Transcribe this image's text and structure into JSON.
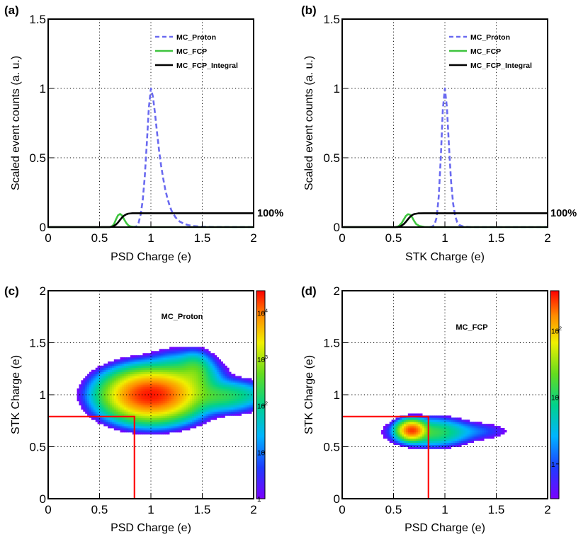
{
  "chart_data": [
    {
      "id": "a",
      "type": "line",
      "panel_label": "(a)",
      "xlabel": "PSD Charge (e)",
      "ylabel": "Scaled event counts (a. u.)",
      "xlim": [
        0,
        2
      ],
      "ylim": [
        0,
        1.5
      ],
      "xticks": [
        "0",
        "0.5",
        "1",
        "1.5",
        "2"
      ],
      "yticks": [
        "0",
        "0.5",
        "1",
        "1.5"
      ],
      "grid": true,
      "legend_position": "top-right",
      "annotation": {
        "text": "100%",
        "x": 2.0,
        "y": 0.1
      },
      "series": [
        {
          "name": "MC_Proton",
          "color": "#6a6af0",
          "dash": true,
          "points": [
            [
              0.82,
              0
            ],
            [
              0.86,
              0.005
            ],
            [
              0.88,
              0.03
            ],
            [
              0.9,
              0.09
            ],
            [
              0.92,
              0.19
            ],
            [
              0.94,
              0.36
            ],
            [
              0.96,
              0.6
            ],
            [
              0.98,
              0.86
            ],
            [
              1.0,
              1.0
            ],
            [
              1.02,
              0.94
            ],
            [
              1.04,
              0.82
            ],
            [
              1.06,
              0.68
            ],
            [
              1.08,
              0.55
            ],
            [
              1.1,
              0.44
            ],
            [
              1.12,
              0.35
            ],
            [
              1.14,
              0.27
            ],
            [
              1.16,
              0.21
            ],
            [
              1.18,
              0.16
            ],
            [
              1.2,
              0.12
            ],
            [
              1.24,
              0.07
            ],
            [
              1.28,
              0.04
            ],
            [
              1.32,
              0.025
            ],
            [
              1.36,
              0.015
            ],
            [
              1.42,
              0.007
            ],
            [
              1.5,
              0.003
            ],
            [
              1.6,
              0.001
            ],
            [
              2.0,
              0
            ]
          ]
        },
        {
          "name": "MC_FCP",
          "color": "#3ec43e",
          "dash": false,
          "points": [
            [
              0,
              0
            ],
            [
              0.6,
              0
            ],
            [
              0.62,
              0.005
            ],
            [
              0.64,
              0.02
            ],
            [
              0.66,
              0.055
            ],
            [
              0.68,
              0.085
            ],
            [
              0.7,
              0.095
            ],
            [
              0.72,
              0.083
            ],
            [
              0.74,
              0.055
            ],
            [
              0.76,
              0.03
            ],
            [
              0.78,
              0.013
            ],
            [
              0.8,
              0.005
            ],
            [
              0.84,
              0.001
            ],
            [
              0.9,
              0
            ],
            [
              2.0,
              0
            ]
          ]
        },
        {
          "name": "MC_FCP_Integral",
          "color": "#000000",
          "dash": false,
          "points": [
            [
              0,
              0
            ],
            [
              0.6,
              0
            ],
            [
              0.63,
              0.004
            ],
            [
              0.66,
              0.018
            ],
            [
              0.68,
              0.033
            ],
            [
              0.7,
              0.052
            ],
            [
              0.72,
              0.07
            ],
            [
              0.74,
              0.083
            ],
            [
              0.76,
              0.092
            ],
            [
              0.78,
              0.097
            ],
            [
              0.82,
              0.1
            ],
            [
              2.0,
              0.1
            ]
          ]
        }
      ]
    },
    {
      "id": "b",
      "type": "line",
      "panel_label": "(b)",
      "xlabel": "STK Charge (e)",
      "ylabel": "Scaled event counts (a. u.)",
      "xlim": [
        0,
        2
      ],
      "ylim": [
        0,
        1.5
      ],
      "xticks": [
        "0",
        "0.5",
        "1",
        "1.5",
        "2"
      ],
      "yticks": [
        "0",
        "0.5",
        "1",
        "1.5"
      ],
      "grid": true,
      "legend_position": "top-right",
      "annotation": {
        "text": "100%",
        "x": 2.0,
        "y": 0.1
      },
      "series": [
        {
          "name": "MC_Proton",
          "color": "#6a6af0",
          "dash": true,
          "points": [
            [
              0.85,
              0
            ],
            [
              0.88,
              0.005
            ],
            [
              0.9,
              0.02
            ],
            [
              0.92,
              0.07
            ],
            [
              0.94,
              0.22
            ],
            [
              0.96,
              0.5
            ],
            [
              0.98,
              0.85
            ],
            [
              1.0,
              1.0
            ],
            [
              1.02,
              0.86
            ],
            [
              1.04,
              0.58
            ],
            [
              1.06,
              0.33
            ],
            [
              1.08,
              0.17
            ],
            [
              1.1,
              0.08
            ],
            [
              1.12,
              0.035
            ],
            [
              1.14,
              0.015
            ],
            [
              1.18,
              0.004
            ],
            [
              1.25,
              0
            ],
            [
              2.0,
              0
            ]
          ]
        },
        {
          "name": "MC_FCP",
          "color": "#3ec43e",
          "dash": false,
          "points": [
            [
              0,
              0
            ],
            [
              0.52,
              0
            ],
            [
              0.55,
              0.006
            ],
            [
              0.58,
              0.03
            ],
            [
              0.6,
              0.055
            ],
            [
              0.62,
              0.08
            ],
            [
              0.64,
              0.093
            ],
            [
              0.66,
              0.09
            ],
            [
              0.68,
              0.072
            ],
            [
              0.7,
              0.045
            ],
            [
              0.72,
              0.022
            ],
            [
              0.75,
              0.008
            ],
            [
              0.8,
              0.001
            ],
            [
              0.86,
              0
            ],
            [
              2.0,
              0
            ]
          ]
        },
        {
          "name": "MC_FCP_Integral",
          "color": "#000000",
          "dash": false,
          "points": [
            [
              0,
              0
            ],
            [
              0.54,
              0
            ],
            [
              0.57,
              0.006
            ],
            [
              0.6,
              0.022
            ],
            [
              0.62,
              0.038
            ],
            [
              0.64,
              0.056
            ],
            [
              0.66,
              0.073
            ],
            [
              0.68,
              0.086
            ],
            [
              0.7,
              0.094
            ],
            [
              0.74,
              0.099
            ],
            [
              0.8,
              0.1
            ],
            [
              2.0,
              0.1
            ]
          ]
        }
      ]
    },
    {
      "id": "c",
      "type": "heatmap",
      "panel_label": "(c)",
      "title": "MC_Proton",
      "xlabel": "PSD Charge (e)",
      "ylabel": "STK Charge (e)",
      "xlim": [
        0,
        2
      ],
      "ylim": [
        0,
        2
      ],
      "xticks": [
        "0",
        "0.5",
        "1",
        "1.5",
        "2"
      ],
      "yticks": [
        "0",
        "0.5",
        "1",
        "1.5",
        "2"
      ],
      "grid": true,
      "z_scale": "log",
      "z_range": [
        1,
        30000
      ],
      "z_ticks": [
        {
          "value": 1,
          "base": "1",
          "exp": ""
        },
        {
          "value": 10,
          "base": "10",
          "exp": ""
        },
        {
          "value": 100,
          "base": "10",
          "exp": "2"
        },
        {
          "value": 1000,
          "base": "10",
          "exp": "3"
        },
        {
          "value": 10000,
          "base": "10",
          "exp": "4"
        }
      ],
      "blobs": [
        {
          "x": 1.0,
          "y": 1.0,
          "sx": 0.16,
          "sy": 0.085,
          "peak": 25000
        },
        {
          "x": 1.28,
          "y": 1.08,
          "sx": 0.14,
          "sy": 0.1,
          "peak": 1200
        },
        {
          "x": 1.42,
          "y": 1.22,
          "sx": 0.07,
          "sy": 0.07,
          "peak": 350
        },
        {
          "x": 1.62,
          "y": 0.99,
          "sx": 0.18,
          "sy": 0.06,
          "peak": 250
        },
        {
          "x": 1.9,
          "y": 1.0,
          "sx": 0.11,
          "sy": 0.045,
          "peak": 30
        }
      ],
      "cut_lines": {
        "color": "#ff0000",
        "x_cut": 0.84,
        "y_cut": 0.79
      }
    },
    {
      "id": "d",
      "type": "heatmap",
      "panel_label": "(d)",
      "title": "MC_FCP",
      "xlabel": "PSD Charge (e)",
      "ylabel": "STK Charge (e)",
      "xlim": [
        0,
        2
      ],
      "ylim": [
        0,
        2
      ],
      "xticks": [
        "0",
        "0.5",
        "1",
        "1.5",
        "2"
      ],
      "yticks": [
        "0",
        "0.5",
        "1",
        "1.5",
        "2"
      ],
      "grid": true,
      "z_scale": "log",
      "z_range": [
        0.3,
        400
      ],
      "z_ticks": [
        {
          "value": 1,
          "base": "1",
          "exp": ""
        },
        {
          "value": 10,
          "base": "10",
          "exp": ""
        },
        {
          "value": 100,
          "base": "10",
          "exp": "2"
        }
      ],
      "blobs": [
        {
          "x": 0.68,
          "y": 0.66,
          "sx": 0.06,
          "sy": 0.04,
          "peak": 280
        },
        {
          "x": 0.86,
          "y": 0.64,
          "sx": 0.17,
          "sy": 0.06,
          "peak": 14
        },
        {
          "x": 1.25,
          "y": 0.65,
          "sx": 0.2,
          "sy": 0.045,
          "peak": 1.3
        }
      ],
      "cut_lines": {
        "color": "#ff0000",
        "x_cut": 0.84,
        "y_cut": 0.79
      }
    }
  ]
}
